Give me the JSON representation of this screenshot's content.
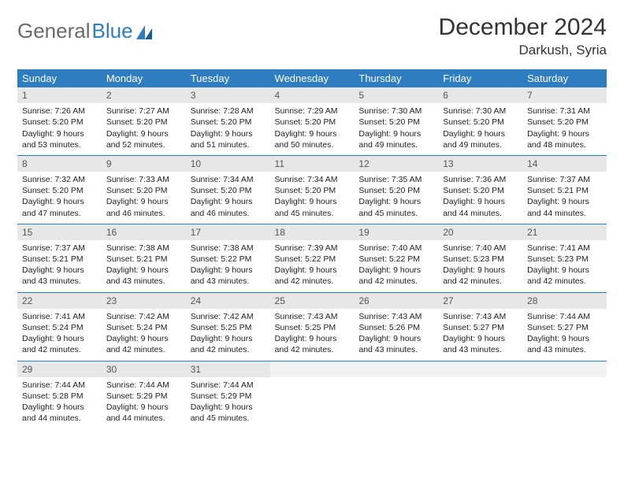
{
  "brand": {
    "part1": "General",
    "part2": "Blue"
  },
  "title": "December 2024",
  "location": "Darkush, Syria",
  "colors": {
    "header_bg": "#2d7dc0",
    "header_fg": "#ffffff",
    "daynum_bg": "#e7e7e7",
    "border": "#2d7dc0",
    "logo_gray": "#6a6a6a"
  },
  "weekdays": [
    "Sunday",
    "Monday",
    "Tuesday",
    "Wednesday",
    "Thursday",
    "Friday",
    "Saturday"
  ],
  "weeks": [
    [
      {
        "n": "1",
        "sr": "7:26 AM",
        "ss": "5:20 PM",
        "dl": "9 hours and 53 minutes."
      },
      {
        "n": "2",
        "sr": "7:27 AM",
        "ss": "5:20 PM",
        "dl": "9 hours and 52 minutes."
      },
      {
        "n": "3",
        "sr": "7:28 AM",
        "ss": "5:20 PM",
        "dl": "9 hours and 51 minutes."
      },
      {
        "n": "4",
        "sr": "7:29 AM",
        "ss": "5:20 PM",
        "dl": "9 hours and 50 minutes."
      },
      {
        "n": "5",
        "sr": "7:30 AM",
        "ss": "5:20 PM",
        "dl": "9 hours and 49 minutes."
      },
      {
        "n": "6",
        "sr": "7:30 AM",
        "ss": "5:20 PM",
        "dl": "9 hours and 49 minutes."
      },
      {
        "n": "7",
        "sr": "7:31 AM",
        "ss": "5:20 PM",
        "dl": "9 hours and 48 minutes."
      }
    ],
    [
      {
        "n": "8",
        "sr": "7:32 AM",
        "ss": "5:20 PM",
        "dl": "9 hours and 47 minutes."
      },
      {
        "n": "9",
        "sr": "7:33 AM",
        "ss": "5:20 PM",
        "dl": "9 hours and 46 minutes."
      },
      {
        "n": "10",
        "sr": "7:34 AM",
        "ss": "5:20 PM",
        "dl": "9 hours and 46 minutes."
      },
      {
        "n": "11",
        "sr": "7:34 AM",
        "ss": "5:20 PM",
        "dl": "9 hours and 45 minutes."
      },
      {
        "n": "12",
        "sr": "7:35 AM",
        "ss": "5:20 PM",
        "dl": "9 hours and 45 minutes."
      },
      {
        "n": "13",
        "sr": "7:36 AM",
        "ss": "5:20 PM",
        "dl": "9 hours and 44 minutes."
      },
      {
        "n": "14",
        "sr": "7:37 AM",
        "ss": "5:21 PM",
        "dl": "9 hours and 44 minutes."
      }
    ],
    [
      {
        "n": "15",
        "sr": "7:37 AM",
        "ss": "5:21 PM",
        "dl": "9 hours and 43 minutes."
      },
      {
        "n": "16",
        "sr": "7:38 AM",
        "ss": "5:21 PM",
        "dl": "9 hours and 43 minutes."
      },
      {
        "n": "17",
        "sr": "7:38 AM",
        "ss": "5:22 PM",
        "dl": "9 hours and 43 minutes."
      },
      {
        "n": "18",
        "sr": "7:39 AM",
        "ss": "5:22 PM",
        "dl": "9 hours and 42 minutes."
      },
      {
        "n": "19",
        "sr": "7:40 AM",
        "ss": "5:22 PM",
        "dl": "9 hours and 42 minutes."
      },
      {
        "n": "20",
        "sr": "7:40 AM",
        "ss": "5:23 PM",
        "dl": "9 hours and 42 minutes."
      },
      {
        "n": "21",
        "sr": "7:41 AM",
        "ss": "5:23 PM",
        "dl": "9 hours and 42 minutes."
      }
    ],
    [
      {
        "n": "22",
        "sr": "7:41 AM",
        "ss": "5:24 PM",
        "dl": "9 hours and 42 minutes."
      },
      {
        "n": "23",
        "sr": "7:42 AM",
        "ss": "5:24 PM",
        "dl": "9 hours and 42 minutes."
      },
      {
        "n": "24",
        "sr": "7:42 AM",
        "ss": "5:25 PM",
        "dl": "9 hours and 42 minutes."
      },
      {
        "n": "25",
        "sr": "7:43 AM",
        "ss": "5:25 PM",
        "dl": "9 hours and 42 minutes."
      },
      {
        "n": "26",
        "sr": "7:43 AM",
        "ss": "5:26 PM",
        "dl": "9 hours and 43 minutes."
      },
      {
        "n": "27",
        "sr": "7:43 AM",
        "ss": "5:27 PM",
        "dl": "9 hours and 43 minutes."
      },
      {
        "n": "28",
        "sr": "7:44 AM",
        "ss": "5:27 PM",
        "dl": "9 hours and 43 minutes."
      }
    ],
    [
      {
        "n": "29",
        "sr": "7:44 AM",
        "ss": "5:28 PM",
        "dl": "9 hours and 44 minutes."
      },
      {
        "n": "30",
        "sr": "7:44 AM",
        "ss": "5:29 PM",
        "dl": "9 hours and 44 minutes."
      },
      {
        "n": "31",
        "sr": "7:44 AM",
        "ss": "5:29 PM",
        "dl": "9 hours and 45 minutes."
      },
      null,
      null,
      null,
      null
    ]
  ],
  "labels": {
    "sunrise": "Sunrise:",
    "sunset": "Sunset:",
    "daylight": "Daylight:"
  }
}
